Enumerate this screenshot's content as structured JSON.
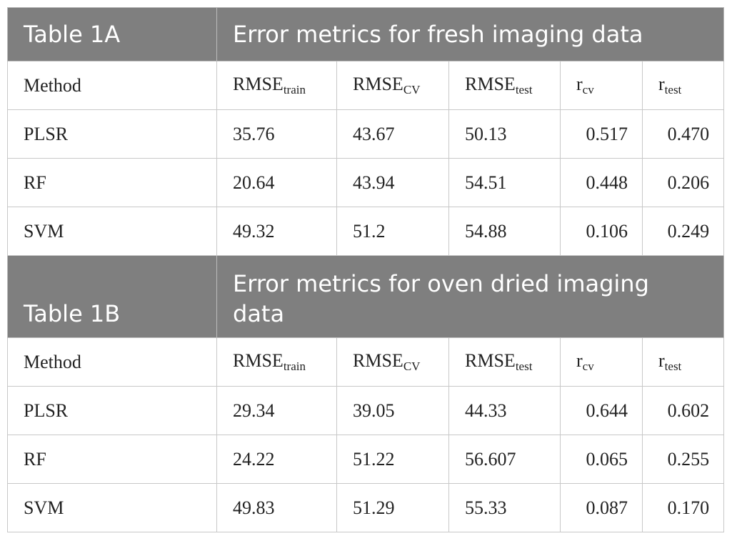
{
  "tables": [
    {
      "label": "Table 1A",
      "title": "Error metrics for fresh imaging data",
      "columns": [
        {
          "text": "Method"
        },
        {
          "text": "RMSE",
          "sub": "train"
        },
        {
          "text": "RMSE",
          "sub": "CV"
        },
        {
          "text": "RMSE",
          "sub": "test"
        },
        {
          "text": "r",
          "sub": "cv"
        },
        {
          "text": "r",
          "sub": "test"
        }
      ],
      "rows": [
        [
          "PLSR",
          "35.76",
          "43.67",
          "50.13",
          "0.517",
          "0.470"
        ],
        [
          "RF",
          "20.64",
          "43.94",
          "54.51",
          "0.448",
          "0.206"
        ],
        [
          "SVM",
          "49.32",
          "51.2",
          "54.88",
          "0.106",
          "0.249"
        ]
      ]
    },
    {
      "label": "Table 1B",
      "title": "Error metrics for oven dried imaging data",
      "columns": [
        {
          "text": "Method"
        },
        {
          "text": "RMSE",
          "sub": "train"
        },
        {
          "text": "RMSE",
          "sub": "CV"
        },
        {
          "text": "RMSE",
          "sub": "test"
        },
        {
          "text": "r",
          "sub": "cv"
        },
        {
          "text": "r",
          "sub": "test"
        }
      ],
      "rows": [
        [
          "PLSR",
          "29.34",
          "39.05",
          "44.33",
          "0.644",
          "0.602"
        ],
        [
          "RF",
          "24.22",
          "51.22",
          "56.607",
          "0.065",
          "0.255"
        ],
        [
          "SVM",
          "49.83",
          "51.29",
          "55.33",
          "0.087",
          "0.170"
        ]
      ]
    }
  ]
}
